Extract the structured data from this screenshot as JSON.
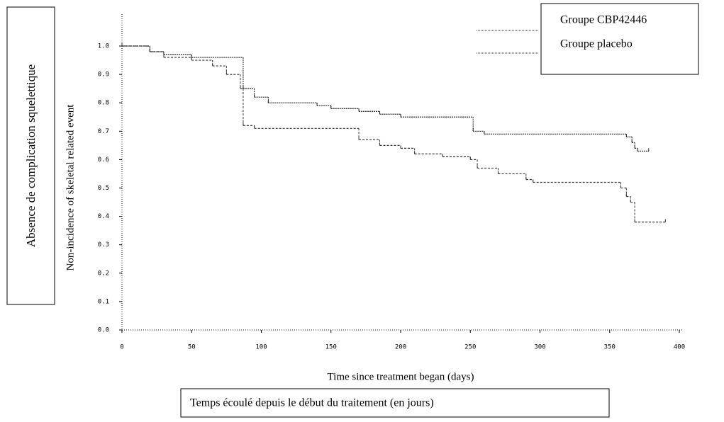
{
  "chart_data": {
    "type": "line",
    "step": true,
    "y_label": "Non-incidence of skeletal related event",
    "x_label": "Time since treatment began (days)",
    "annotations": [
      "Absence de complication squelettique",
      "Temps écoulé depuis le début du traitement (en jours)"
    ],
    "legend": "top-right",
    "series": [
      {
        "name": "Groupe CBP42446",
        "color": "#222222",
        "dash": "2,1",
        "x": [
          0,
          20,
          30,
          50,
          87,
          95,
          105,
          140,
          150,
          170,
          185,
          200,
          252,
          260,
          362,
          366,
          368,
          370,
          378
        ],
        "values": [
          1,
          0.98,
          0.97,
          0.96,
          0.85,
          0.82,
          0.8,
          0.79,
          0.78,
          0.77,
          0.76,
          0.75,
          0.7,
          0.69,
          0.68,
          0.66,
          0.64,
          0.63,
          0.63
        ]
      },
      {
        "name": "Groupe placebo",
        "color": "#333333",
        "dash": "3,2",
        "x": [
          0,
          20,
          30,
          50,
          65,
          75,
          85,
          87,
          95,
          170,
          185,
          200,
          210,
          230,
          250,
          255,
          270,
          290,
          295,
          358,
          362,
          365,
          368,
          390
        ],
        "values": [
          1,
          0.98,
          0.96,
          0.95,
          0.93,
          0.9,
          0.85,
          0.72,
          0.71,
          0.67,
          0.65,
          0.64,
          0.62,
          0.61,
          0.6,
          0.57,
          0.55,
          0.53,
          0.52,
          0.5,
          0.47,
          0.45,
          0.38,
          0.38
        ]
      }
    ],
    "xlim": [
      0,
      400
    ],
    "xticks": [
      0,
      50,
      100,
      150,
      200,
      250,
      300,
      350,
      400
    ],
    "ylim": [
      0,
      1
    ],
    "yticks": [
      {
        "value": 0,
        "label": "0.0"
      },
      0.1,
      0.2,
      0.3,
      0.4,
      0.5,
      0.6,
      0.7,
      0.8,
      0.9,
      {
        "value": 1,
        "label": "1.0"
      }
    ]
  }
}
